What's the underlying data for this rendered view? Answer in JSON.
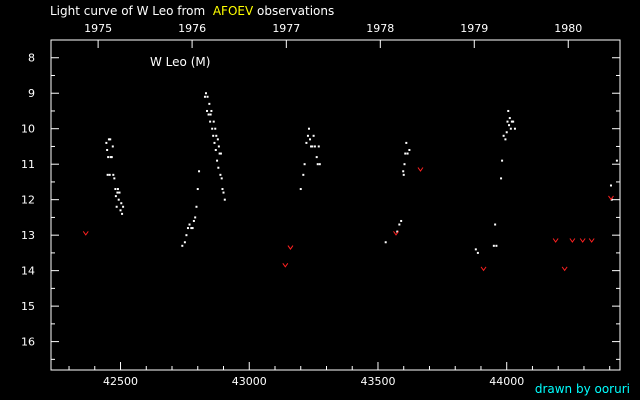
{
  "title": {
    "prefix": "Light curve of W Leo from",
    "highlight": "AFOEV",
    "suffix": "observations"
  },
  "credit": "drawn by ooruri",
  "colors": {
    "background": "#000000",
    "frame": "#ffffff",
    "visual": "#ffffff",
    "fainter_than": "#ff2020",
    "highlight": "#ffff00",
    "credit": "#00ffff"
  },
  "chart_data": {
    "type": "scatter",
    "star_label": "W Leo (M)",
    "xlabel": "",
    "ylabel": "",
    "xlim": [
      42230,
      44440
    ],
    "ylim": [
      7.5,
      16.8
    ],
    "y_inverted": true,
    "x_ticks": [
      42500,
      43000,
      43500,
      44000
    ],
    "y_ticks": [
      8,
      9,
      10,
      11,
      12,
      13,
      14,
      15,
      16
    ],
    "top_axis_year_ticks": [
      {
        "label": "1975",
        "jd": 42413
      },
      {
        "label": "1976",
        "jd": 42778
      },
      {
        "label": "1977",
        "jd": 43144
      },
      {
        "label": "1978",
        "jd": 43509
      },
      {
        "label": "1979",
        "jd": 43874
      },
      {
        "label": "1980",
        "jd": 44239
      }
    ],
    "series": [
      {
        "kind": "visual",
        "points": [
          [
            42445,
            10.4
          ],
          [
            42448,
            10.6
          ],
          [
            42450,
            11.3
          ],
          [
            42452,
            10.8
          ],
          [
            42455,
            10.3
          ],
          [
            42458,
            11.3
          ],
          [
            42460,
            10.3
          ],
          [
            42462,
            10.8
          ],
          [
            42466,
            10.8
          ],
          [
            42470,
            10.5
          ],
          [
            42472,
            11.3
          ],
          [
            42476,
            11.4
          ],
          [
            42480,
            11.7
          ],
          [
            42482,
            11.9
          ],
          [
            42485,
            12.2
          ],
          [
            42488,
            11.8
          ],
          [
            42490,
            11.7
          ],
          [
            42493,
            12.0
          ],
          [
            42496,
            11.8
          ],
          [
            42500,
            12.3
          ],
          [
            42503,
            12.1
          ],
          [
            42506,
            12.4
          ],
          [
            42510,
            12.2
          ],
          [
            42740,
            13.3
          ],
          [
            42750,
            13.2
          ],
          [
            42756,
            13.0
          ],
          [
            42762,
            12.8
          ],
          [
            42768,
            12.7
          ],
          [
            42775,
            12.8
          ],
          [
            42780,
            12.8
          ],
          [
            42785,
            12.6
          ],
          [
            42790,
            12.5
          ],
          [
            42795,
            12.2
          ],
          [
            42800,
            11.7
          ],
          [
            42805,
            11.2
          ],
          [
            42828,
            9.1
          ],
          [
            42832,
            9.0
          ],
          [
            42836,
            9.5
          ],
          [
            42838,
            9.1
          ],
          [
            42842,
            9.6
          ],
          [
            42845,
            9.3
          ],
          [
            42848,
            9.8
          ],
          [
            42850,
            9.6
          ],
          [
            42853,
            9.5
          ],
          [
            42856,
            10.0
          ],
          [
            42860,
            10.2
          ],
          [
            42862,
            9.8
          ],
          [
            42865,
            10.4
          ],
          [
            42868,
            10.0
          ],
          [
            42870,
            10.6
          ],
          [
            42872,
            10.2
          ],
          [
            42875,
            10.9
          ],
          [
            42878,
            10.3
          ],
          [
            42880,
            11.1
          ],
          [
            42882,
            10.5
          ],
          [
            42885,
            10.7
          ],
          [
            42888,
            11.3
          ],
          [
            42890,
            10.7
          ],
          [
            42893,
            11.4
          ],
          [
            42896,
            11.7
          ],
          [
            42900,
            11.8
          ],
          [
            42905,
            12.0
          ],
          [
            43200,
            11.7
          ],
          [
            43210,
            11.3
          ],
          [
            43215,
            11.0
          ],
          [
            43222,
            10.4
          ],
          [
            43228,
            10.2
          ],
          [
            43232,
            10.0
          ],
          [
            43236,
            10.3
          ],
          [
            43240,
            10.5
          ],
          [
            43245,
            10.5
          ],
          [
            43250,
            10.2
          ],
          [
            43255,
            10.5
          ],
          [
            43262,
            10.8
          ],
          [
            43266,
            11.0
          ],
          [
            43270,
            10.5
          ],
          [
            43274,
            11.0
          ],
          [
            43530,
            13.2
          ],
          [
            43575,
            12.9
          ],
          [
            43583,
            12.7
          ],
          [
            43590,
            12.6
          ],
          [
            43598,
            11.2
          ],
          [
            43600,
            11.3
          ],
          [
            43603,
            11.0
          ],
          [
            43606,
            10.7
          ],
          [
            43610,
            10.4
          ],
          [
            43615,
            10.7
          ],
          [
            43622,
            10.6
          ],
          [
            43880,
            13.4
          ],
          [
            43888,
            13.5
          ],
          [
            43950,
            13.3
          ],
          [
            43955,
            12.7
          ],
          [
            43960,
            13.3
          ],
          [
            43978,
            11.4
          ],
          [
            43982,
            10.9
          ],
          [
            43988,
            10.2
          ],
          [
            43995,
            10.3
          ],
          [
            44000,
            10.1
          ],
          [
            44003,
            9.8
          ],
          [
            44006,
            9.5
          ],
          [
            44009,
            9.9
          ],
          [
            44012,
            9.7
          ],
          [
            44016,
            10.0
          ],
          [
            44020,
            9.8
          ],
          [
            44025,
            9.8
          ],
          [
            44032,
            10.0
          ],
          [
            44405,
            11.6
          ],
          [
            44408,
            12.0
          ],
          [
            44428,
            10.9
          ]
        ]
      },
      {
        "kind": "fainter_than",
        "points": [
          [
            42365,
            12.95
          ],
          [
            43140,
            13.85
          ],
          [
            43160,
            13.35
          ],
          [
            43570,
            12.95
          ],
          [
            43665,
            11.15
          ],
          [
            43910,
            13.95
          ],
          [
            44190,
            13.15
          ],
          [
            44225,
            13.95
          ],
          [
            44255,
            13.15
          ],
          [
            44295,
            13.15
          ],
          [
            44330,
            13.15
          ],
          [
            44405,
            11.95
          ]
        ]
      }
    ]
  }
}
